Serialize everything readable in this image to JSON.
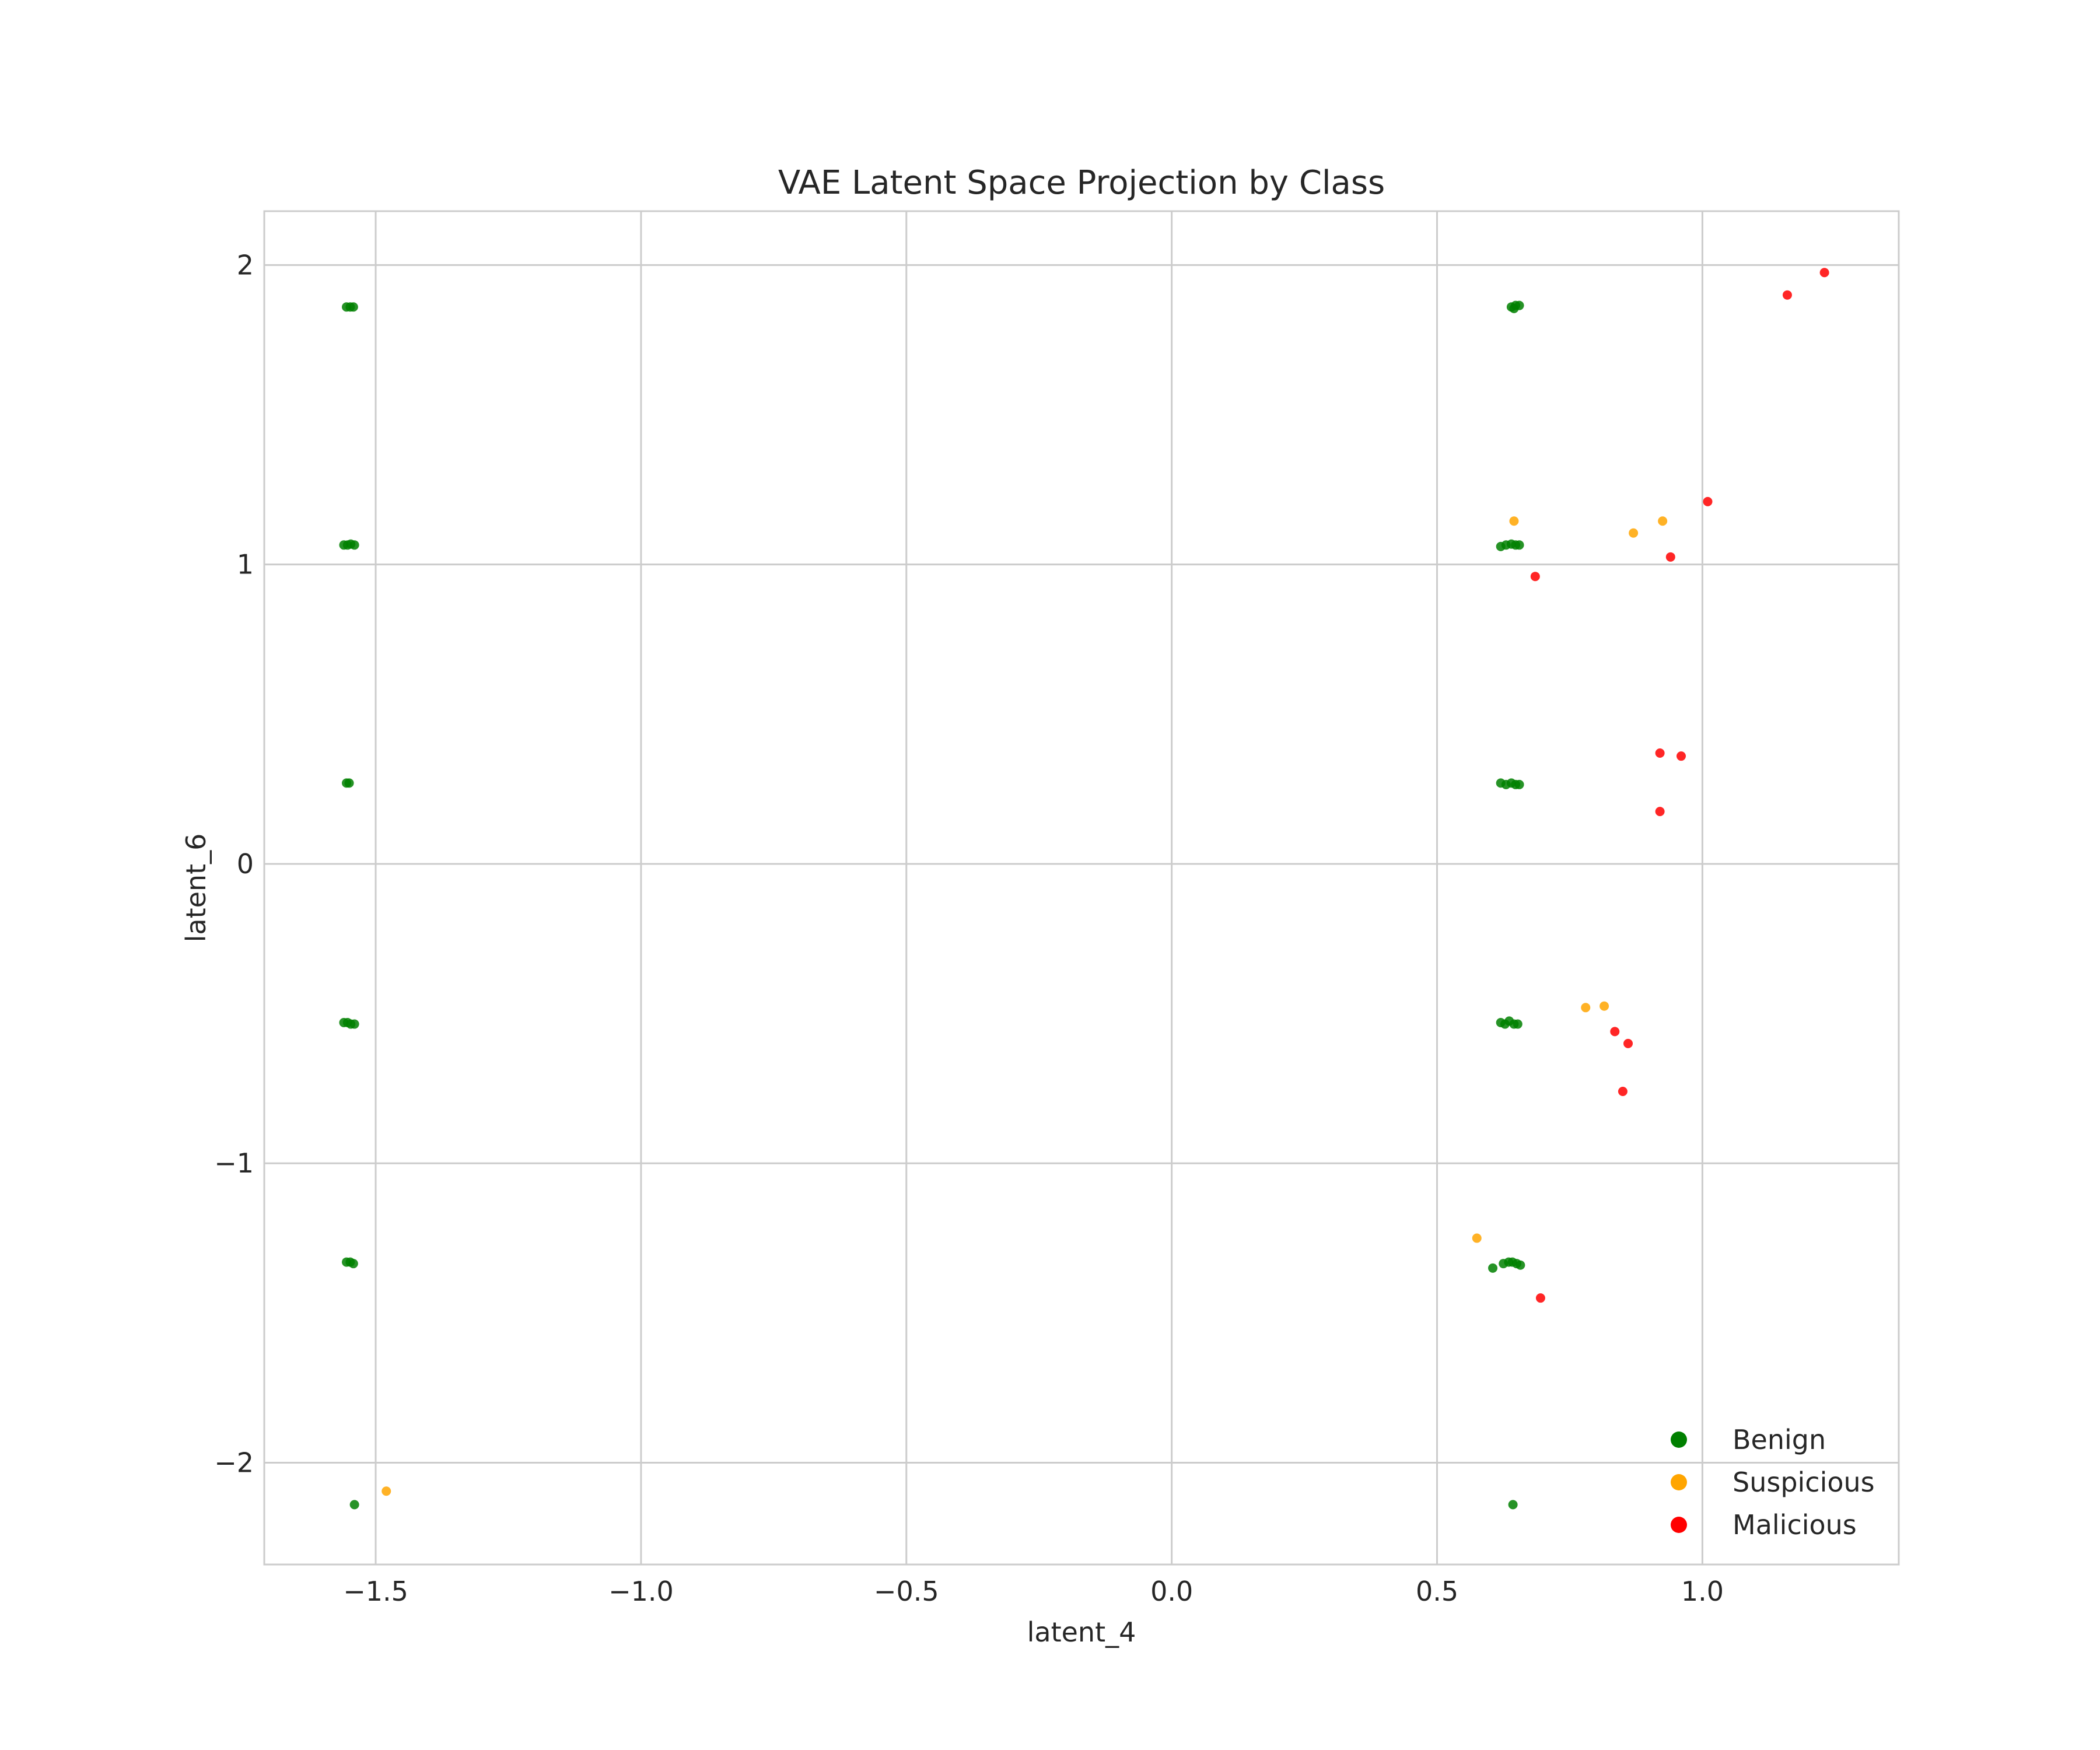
{
  "chart_data": {
    "type": "scatter",
    "title": "VAE Latent Space Projection by Class",
    "xlabel": "latent_4",
    "ylabel": "latent_6",
    "xlim": [
      -1.71,
      1.37
    ],
    "ylim": [
      -2.34,
      2.18
    ],
    "xticks": [
      -1.5,
      -1.0,
      -0.5,
      0.0,
      0.5,
      1.0
    ],
    "xtick_labels": [
      "−1.5",
      "−1.0",
      "−0.5",
      "0.0",
      "0.5",
      "1.0"
    ],
    "yticks": [
      -2,
      -1,
      0,
      1,
      2
    ],
    "ytick_labels": [
      "−2",
      "−1",
      "0",
      "1",
      "2"
    ],
    "grid": true,
    "legend_position": "bottom-right",
    "series": [
      {
        "name": "Benign",
        "color": "#008000",
        "points": [
          [
            -1.555,
            1.86
          ],
          [
            -1.548,
            1.86
          ],
          [
            -1.542,
            1.86
          ],
          [
            -1.56,
            1.065
          ],
          [
            -1.553,
            1.065
          ],
          [
            -1.547,
            1.068
          ],
          [
            -1.54,
            1.065
          ],
          [
            -1.555,
            0.27
          ],
          [
            -1.55,
            0.27
          ],
          [
            -1.56,
            -0.53
          ],
          [
            -1.553,
            -0.53
          ],
          [
            -1.547,
            -0.535
          ],
          [
            -1.54,
            -0.535
          ],
          [
            -1.555,
            -1.33
          ],
          [
            -1.548,
            -1.33
          ],
          [
            -1.542,
            -1.335
          ],
          [
            -1.54,
            -2.14
          ],
          [
            0.64,
            1.86
          ],
          [
            0.648,
            1.865
          ],
          [
            0.655,
            1.865
          ],
          [
            0.645,
            1.855
          ],
          [
            0.62,
            1.06
          ],
          [
            0.63,
            1.065
          ],
          [
            0.64,
            1.068
          ],
          [
            0.648,
            1.065
          ],
          [
            0.655,
            1.065
          ],
          [
            0.62,
            0.27
          ],
          [
            0.63,
            0.265
          ],
          [
            0.64,
            0.27
          ],
          [
            0.648,
            0.265
          ],
          [
            0.655,
            0.265
          ],
          [
            0.62,
            -0.53
          ],
          [
            0.628,
            -0.535
          ],
          [
            0.636,
            -0.525
          ],
          [
            0.645,
            -0.535
          ],
          [
            0.652,
            -0.535
          ],
          [
            0.605,
            -1.35
          ],
          [
            0.625,
            -1.335
          ],
          [
            0.635,
            -1.33
          ],
          [
            0.642,
            -1.33
          ],
          [
            0.65,
            -1.335
          ],
          [
            0.657,
            -1.34
          ],
          [
            0.643,
            -2.14
          ]
        ]
      },
      {
        "name": "Suspicious",
        "color": "#FFA500",
        "points": [
          [
            -1.48,
            -2.095
          ],
          [
            0.645,
            1.145
          ],
          [
            0.87,
            1.105
          ],
          [
            0.925,
            1.145
          ],
          [
            0.78,
            -0.48
          ],
          [
            0.815,
            -0.475
          ],
          [
            0.575,
            -1.25
          ]
        ]
      },
      {
        "name": "Malicious",
        "color": "#FF0000",
        "points": [
          [
            1.16,
            1.9
          ],
          [
            1.23,
            1.975
          ],
          [
            1.01,
            1.21
          ],
          [
            0.94,
            1.025
          ],
          [
            0.685,
            0.96
          ],
          [
            0.92,
            0.37
          ],
          [
            0.96,
            0.36
          ],
          [
            0.92,
            0.175
          ],
          [
            0.835,
            -0.56
          ],
          [
            0.86,
            -0.6
          ],
          [
            0.85,
            -0.76
          ],
          [
            0.695,
            -1.45
          ]
        ]
      }
    ]
  }
}
